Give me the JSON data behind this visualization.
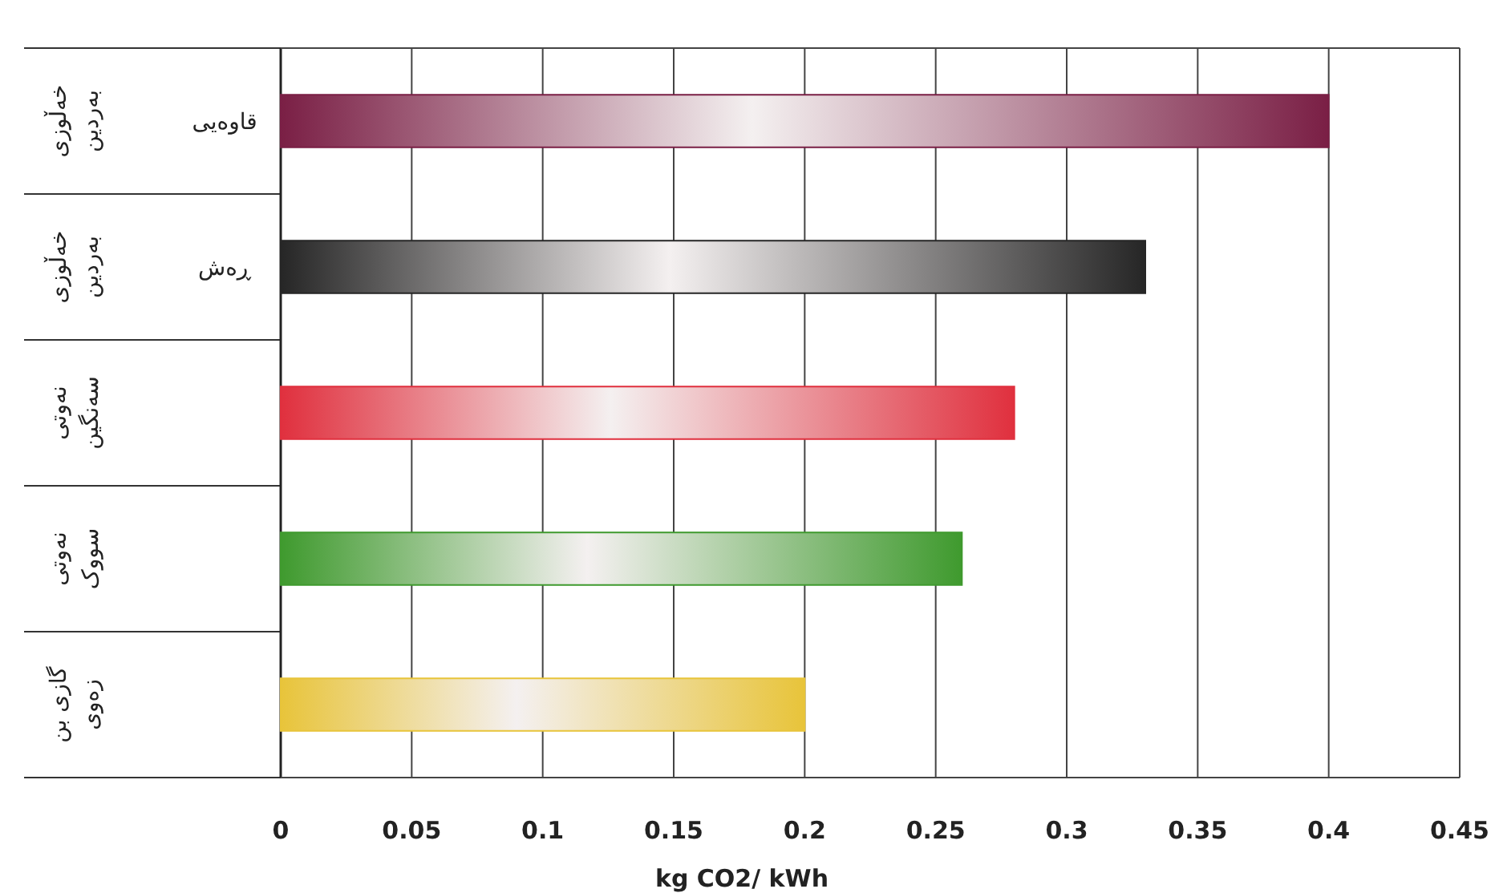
{
  "chart_data": {
    "type": "bar",
    "orientation": "horizontal",
    "xlabel": "kg CO2/ kWh",
    "categories": [
      "خەڵوزی بەردین",
      "خەڵوزی بەردین",
      "نەوتی سەنگین",
      "نەوتی سووک",
      "گازی بن زەوی"
    ],
    "annotations": [
      "قاوەیی",
      "ڕەش"
    ],
    "values": [
      0.4,
      0.33,
      0.28,
      0.26,
      0.2
    ],
    "colors": [
      "#7a1f45",
      "#262626",
      "#e0303e",
      "#3f9a2e",
      "#e8c43a"
    ],
    "xlim": [
      0,
      0.45
    ],
    "xticks": [
      0,
      0.05,
      0.1,
      0.15,
      0.2,
      0.25,
      0.3,
      0.35,
      0.4,
      0.45
    ],
    "grid": "x"
  }
}
